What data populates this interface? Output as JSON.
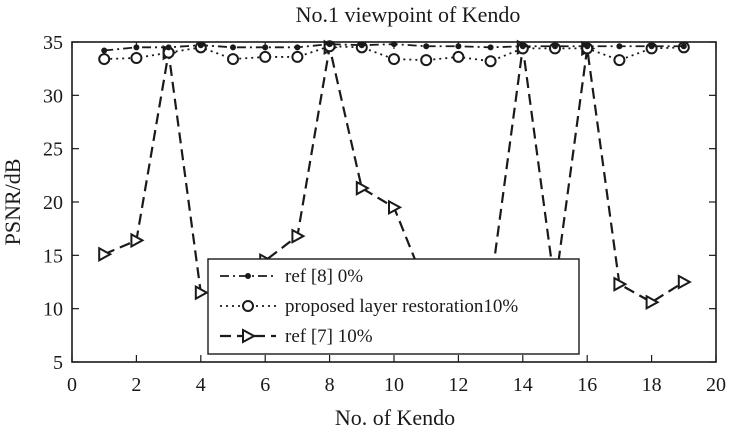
{
  "chart_data": {
    "type": "line",
    "title": "No.1 viewpoint of Kendo",
    "xlabel": "No. of Kendo",
    "ylabel": "PSNR/dB",
    "xlim": [
      0,
      20
    ],
    "ylim": [
      5,
      35
    ],
    "xticks": [
      0,
      2,
      4,
      6,
      8,
      10,
      12,
      14,
      16,
      18,
      20
    ],
    "yticks": [
      5,
      10,
      15,
      20,
      25,
      30,
      35
    ],
    "grid": false,
    "legend_position": "bottom-center",
    "series": [
      {
        "name": "ref [8] 0%",
        "style": "dashdot",
        "marker": "dot",
        "x": [
          1,
          2,
          3,
          4,
          5,
          6,
          7,
          8,
          9,
          10,
          11,
          12,
          13,
          14,
          15,
          16,
          17,
          18,
          19
        ],
        "y": [
          34.2,
          34.5,
          34.5,
          34.7,
          34.5,
          34.5,
          34.5,
          34.8,
          34.7,
          34.8,
          34.6,
          34.6,
          34.5,
          34.6,
          34.6,
          34.6,
          34.6,
          34.6,
          34.6
        ]
      },
      {
        "name": "proposed layer restoration10%",
        "style": "dotted",
        "marker": "circle",
        "x": [
          1,
          2,
          3,
          4,
          5,
          6,
          7,
          8,
          9,
          10,
          11,
          12,
          13,
          14,
          15,
          16,
          17,
          18,
          19
        ],
        "y": [
          33.4,
          33.5,
          34.0,
          34.5,
          33.4,
          33.6,
          33.6,
          34.6,
          34.5,
          33.4,
          33.3,
          33.6,
          33.2,
          34.4,
          34.4,
          34.4,
          33.3,
          34.4,
          34.5
        ]
      },
      {
        "name": "ref [7] 10%",
        "style": "dashed",
        "marker": "triangle-right",
        "x": [
          1,
          2,
          3,
          4,
          5,
          6,
          7,
          8,
          9,
          10,
          11,
          12,
          13,
          14,
          15,
          16,
          17,
          18,
          19
        ],
        "y": [
          15.1,
          16.4,
          34.0,
          11.5,
          12.5,
          14.5,
          16.8,
          34.5,
          21.3,
          19.5,
          12.0,
          12.0,
          12.0,
          34.5,
          12.0,
          34.4,
          12.3,
          10.6,
          12.5
        ]
      }
    ]
  }
}
